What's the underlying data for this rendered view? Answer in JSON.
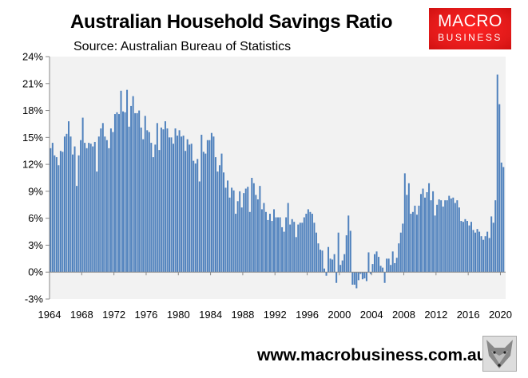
{
  "header": {
    "title": "Australian Household Savings Ratio",
    "subtitle": "Source: Australian Bureau of Statistics"
  },
  "logo": {
    "line1": "MACRO",
    "line2": "BUSINESS",
    "color": "#e21a1a"
  },
  "footer": {
    "url": "www.macrobusiness.com.au",
    "mascot_icon": "fox-head-icon"
  },
  "chart_data": {
    "type": "bar",
    "title": "Australian Household Savings Ratio",
    "xlabel": "",
    "ylabel": "",
    "frequency": "quarterly",
    "start": "1964 Q1",
    "x_tick_labels": [
      "1964",
      "1968",
      "1972",
      "1976",
      "1980",
      "1984",
      "1988",
      "1992",
      "1996",
      "2000",
      "2004",
      "2008",
      "2012",
      "2016",
      "2020"
    ],
    "y_tick_labels": [
      "-3%",
      "0%",
      "3%",
      "6%",
      "9%",
      "12%",
      "15%",
      "18%",
      "21%",
      "24%"
    ],
    "ylim": [
      -3,
      24
    ],
    "y_unit": "%",
    "grid": false,
    "background": "#f2f2f2",
    "bar_color": "#4f81bd",
    "values": [
      13.8,
      14.4,
      13.0,
      12.8,
      11.9,
      13.5,
      13.4,
      15.1,
      15.4,
      16.8,
      15.1,
      13.1,
      14.0,
      9.6,
      13.0,
      14.7,
      17.2,
      14.4,
      13.8,
      14.4,
      14.3,
      14.0,
      14.5,
      11.2,
      15.1,
      16.0,
      16.6,
      15.1,
      14.7,
      13.8,
      16.0,
      15.6,
      17.6,
      17.8,
      17.6,
      20.2,
      17.9,
      17.8,
      20.3,
      16.2,
      18.5,
      19.6,
      17.7,
      17.7,
      18.0,
      16.1,
      14.8,
      17.4,
      15.8,
      15.6,
      14.4,
      12.8,
      14.2,
      16.6,
      13.6,
      16.1,
      15.9,
      16.8,
      16.0,
      15.0,
      15.0,
      14.3,
      16.0,
      15.2,
      15.8,
      15.1,
      15.2,
      13.5,
      14.8,
      14.2,
      14.3,
      12.4,
      12.1,
      12.6,
      10.1,
      15.3,
      13.4,
      13.2,
      14.7,
      14.7,
      15.5,
      15.1,
      12.8,
      11.2,
      11.9,
      13.2,
      11.1,
      9.4,
      10.2,
      8.3,
      9.4,
      9.1,
      6.5,
      7.9,
      9.0,
      7.2,
      8.8,
      9.3,
      9.5,
      6.7,
      10.5,
      9.9,
      8.6,
      8.1,
      9.6,
      7.0,
      7.7,
      6.7,
      5.8,
      6.5,
      5.7,
      7.0,
      6.1,
      6.1,
      6.1,
      5.0,
      4.5,
      6.1,
      7.7,
      5.3,
      5.9,
      5.6,
      3.9,
      5.3,
      5.5,
      5.5,
      6.1,
      6.5,
      7.0,
      6.7,
      6.5,
      5.5,
      4.4,
      3.2,
      2.5,
      2.4,
      0.4,
      -0.4,
      2.8,
      1.5,
      1.4,
      2.0,
      -1.2,
      4.4,
      0.8,
      1.3,
      2.0,
      4.1,
      6.3,
      4.6,
      -1.4,
      -1.4,
      -1.8,
      -0.9,
      -0.2,
      -0.8,
      -0.7,
      -1.0,
      2.2,
      -0.2,
      0.9,
      2.0,
      2.3,
      1.7,
      0.7,
      0.5,
      -1.2,
      1.5,
      1.5,
      0.8,
      2.3,
      1.0,
      1.6,
      3.2,
      4.4,
      5.4,
      11.0,
      8.6,
      9.9,
      6.5,
      6.7,
      7.4,
      6.4,
      7.4,
      8.7,
      9.3,
      8.3,
      8.9,
      9.9,
      8.0,
      9.0,
      6.3,
      7.5,
      8.1,
      8.0,
      7.3,
      8.0,
      8.0,
      8.5,
      8.2,
      8.3,
      7.7,
      8.0,
      7.2,
      5.7,
      5.6,
      5.9,
      5.7,
      5.2,
      5.6,
      4.7,
      4.4,
      4.8,
      4.5,
      4.0,
      3.6,
      4.0,
      4.5,
      3.8,
      6.2,
      5.5,
      8.0,
      22.0,
      18.7,
      12.2,
      11.7
    ]
  }
}
